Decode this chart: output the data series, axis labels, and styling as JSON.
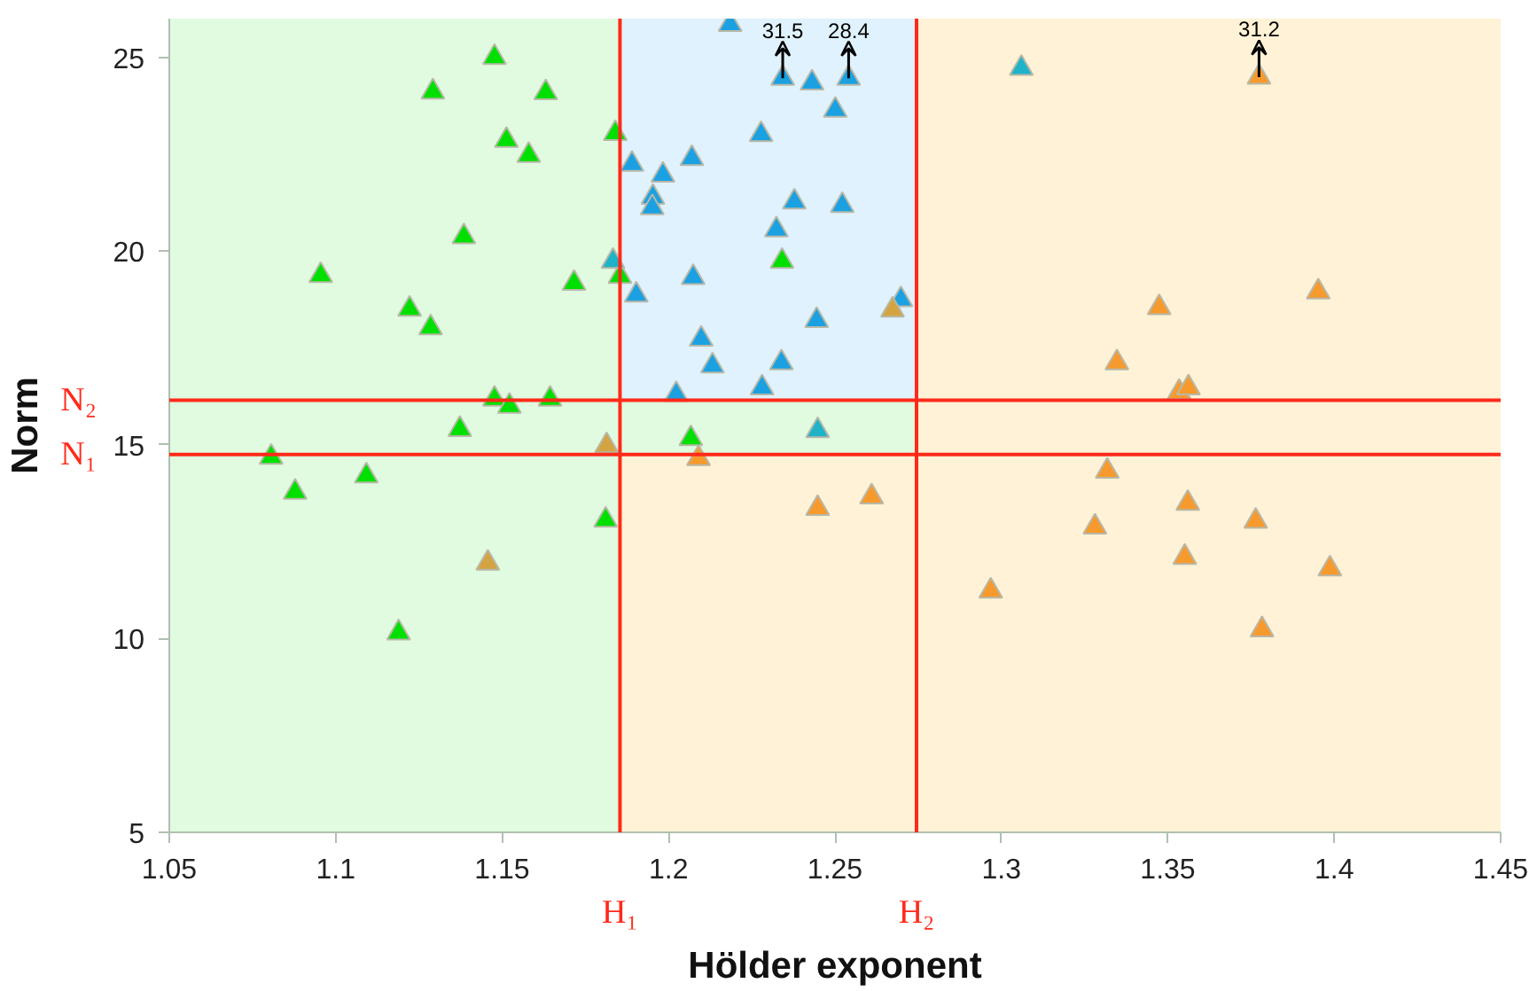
{
  "chart_data": {
    "type": "scatter",
    "xlabel": "Hölder exponent",
    "ylabel": "Norm",
    "xlim": [
      1.05,
      1.45
    ],
    "ylim": [
      5,
      26
    ],
    "xticks": [
      1.05,
      1.1,
      1.15,
      1.2,
      1.25,
      1.3,
      1.35,
      1.4,
      1.45
    ],
    "yticks": [
      5,
      10,
      15,
      20,
      25
    ],
    "marker": "triangle",
    "bands": [
      {
        "axis": "y",
        "from": 5,
        "to": 14.75,
        "color": "#fff2d6"
      },
      {
        "axis": "y",
        "from": 14.75,
        "to": 16.15,
        "color": "#e0fbe0"
      },
      {
        "axis": "y",
        "from": 16.15,
        "to": 26,
        "color": "#dff2fd"
      },
      {
        "axis": "x",
        "from": 1.05,
        "to": 1.1854,
        "color": "#e0fbe0"
      },
      {
        "axis": "x",
        "from": 1.2745,
        "to": 1.45,
        "color": "#fff2d6"
      }
    ],
    "ref_lines": [
      {
        "axis": "y",
        "value": 16.15,
        "label": "N₂",
        "color": "#ff2a1a"
      },
      {
        "axis": "y",
        "value": 14.75,
        "label": "N₁",
        "color": "#ff2a1a"
      },
      {
        "axis": "x",
        "value": 1.1854,
        "label": "H₁",
        "color": "#ff2a1a"
      },
      {
        "axis": "x",
        "value": 1.2745,
        "label": "H₂",
        "color": "#ff2a1a"
      }
    ],
    "annotations": [
      {
        "text": "31.5",
        "x": 1.2343,
        "y": 24.46
      },
      {
        "text": "28.4",
        "x": 1.2541,
        "y": 24.46
      },
      {
        "text": "31.2",
        "x": 1.3774,
        "y": 24.49
      }
    ],
    "series": [
      {
        "color": "#00e000",
        "x": [
          1.1477,
          1.1292,
          1.1631,
          1.184,
          1.1513,
          1.158,
          1.1385,
          1.0955,
          1.1222,
          1.1285,
          1.1716,
          1.1854,
          1.1477,
          1.1522,
          1.1644,
          1.1373,
          1.0806,
          1.1092,
          1.0878,
          1.1811,
          1.1189,
          1.2067,
          1.2341
        ],
        "values": [
          25.0,
          24.11,
          24.09,
          23.04,
          22.86,
          22.47,
          20.37,
          19.37,
          18.5,
          18.02,
          19.17,
          19.35,
          16.18,
          16.0,
          16.18,
          15.4,
          14.68,
          14.2,
          13.78,
          13.06,
          10.15,
          15.16,
          19.74
        ]
      },
      {
        "color": "#1ba1e2",
        "x": [
          1.2185,
          1.2343,
          1.2431,
          1.2541,
          1.2501,
          1.2278,
          1.189,
          1.1983,
          1.207,
          1.1953,
          1.1951,
          1.2378,
          1.2522,
          1.2324,
          1.2074,
          1.1903,
          1.2445,
          1.2698,
          1.2098,
          1.2132,
          1.2339,
          1.2023,
          1.2281
        ],
        "values": [
          25.85,
          24.46,
          24.34,
          24.46,
          23.64,
          23.01,
          22.24,
          21.96,
          22.39,
          21.39,
          21.12,
          21.27,
          21.18,
          20.55,
          19.32,
          18.87,
          18.21,
          18.75,
          17.73,
          17.04,
          17.12,
          16.3,
          16.47
        ]
      },
      {
        "color": "#1fb3c8",
        "x": [
          1.1833,
          1.2448,
          1.306
        ],
        "values": [
          19.74,
          15.37,
          24.72
        ]
      },
      {
        "color": "#f79a2e",
        "x": [
          1.209,
          1.2448,
          1.261,
          1.3774,
          1.3952,
          1.3474,
          1.3347,
          1.3534,
          1.3562,
          1.3318,
          1.356,
          1.3281,
          1.3764,
          1.3551,
          1.3987,
          1.2968,
          1.3783
        ],
        "values": [
          14.65,
          13.36,
          13.66,
          24.49,
          18.95,
          18.54,
          17.12,
          16.36,
          16.47,
          14.32,
          13.49,
          12.88,
          13.03,
          12.1,
          11.8,
          11.23,
          10.23
        ]
      },
      {
        "color": "#d4a443",
        "x": [
          1.1814,
          1.1457,
          1.2673
        ],
        "values": [
          14.98,
          11.95,
          18.48
        ]
      }
    ]
  }
}
